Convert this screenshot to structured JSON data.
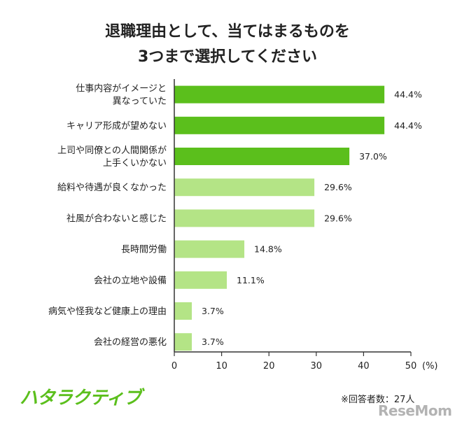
{
  "header": {
    "title_line1": "退職理由として、当てはまるものを",
    "title_line2": "3つまで選択してください"
  },
  "footer": {
    "logo_text": "ハタラクティブ",
    "note": "※回答者数：27人",
    "watermark": "ReseMom"
  },
  "colors": {
    "highlight": "#5bbf1c",
    "normal": "#b4e486",
    "axis": "#333333"
  },
  "chart_data": {
    "type": "bar",
    "orientation": "horizontal",
    "categories": [
      [
        "仕事内容がイメージと",
        "異なっていた"
      ],
      [
        "キャリア形成が望めない"
      ],
      [
        "上司や同僚との人間関係が",
        "上手くいかない"
      ],
      [
        "給料や待遇が良くなかった"
      ],
      [
        "社風が合わないと感じた"
      ],
      [
        "長時間労働"
      ],
      [
        "会社の立地や設備"
      ],
      [
        "病気や怪我など健康上の理由"
      ],
      [
        "会社の経営の悪化"
      ]
    ],
    "values": [
      44.4,
      44.4,
      37.0,
      29.6,
      29.6,
      14.8,
      11.1,
      3.7,
      3.7
    ],
    "value_labels": [
      "44.4%",
      "44.4%",
      "37.0%",
      "29.6%",
      "29.6%",
      "14.8%",
      "11.1%",
      "3.7%",
      "3.7%"
    ],
    "highlighted": [
      true,
      true,
      true,
      false,
      false,
      false,
      false,
      false,
      false
    ],
    "xlim": [
      0,
      50
    ],
    "xticks": [
      "0",
      "10",
      "20",
      "30",
      "40",
      "50"
    ],
    "x_unit": "(%)",
    "grid": false
  }
}
